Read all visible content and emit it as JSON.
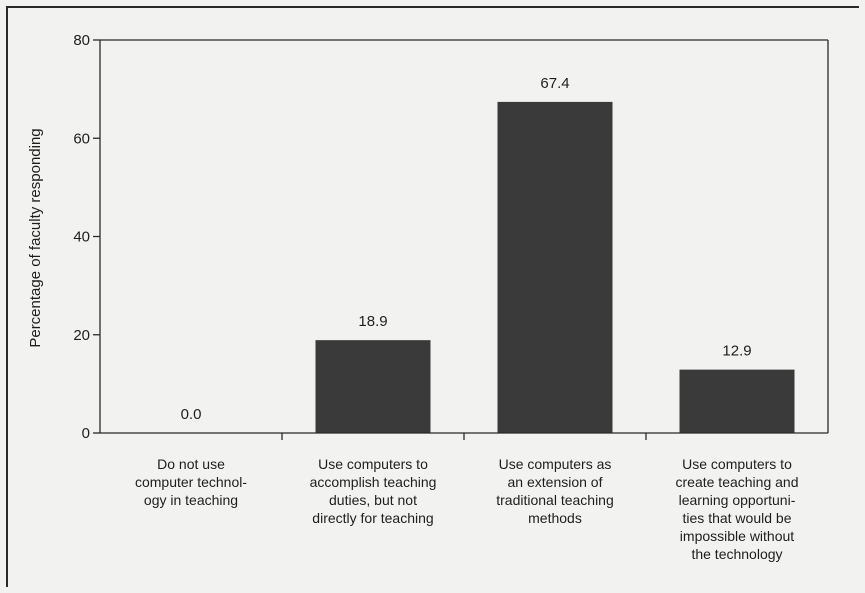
{
  "chart_data": {
    "type": "bar",
    "title": "",
    "xlabel": "",
    "ylabel": "Percentage of faculty responding",
    "ylim": [
      0,
      80
    ],
    "yticks": [
      0,
      20,
      40,
      60,
      80
    ],
    "grid": false,
    "categories": [
      "Do not use computer technology in teaching",
      "Use computers to accomplish teaching duties, but not directly for teaching",
      "Use computers as an extension of traditional teaching methods",
      "Use computers to create teaching and learning opportunities that would be impossible without the technology"
    ],
    "category_lines": [
      [
        "Do not use",
        "computer technol-",
        "ogy in teaching"
      ],
      [
        "Use computers to",
        "accomplish teaching",
        "duties, but not",
        "directly for teaching"
      ],
      [
        "Use computers as",
        "an extension of",
        "traditional teaching",
        "methods"
      ],
      [
        "Use computers to",
        "create teaching and",
        "learning opportuni-",
        "ties that would be",
        "impossible without",
        "the technology"
      ]
    ],
    "values": [
      0.0,
      18.9,
      67.4,
      12.9
    ],
    "value_labels": [
      "0.0",
      "18.9",
      "67.4",
      "12.9"
    ],
    "bar_color": "#3a3a3a"
  }
}
